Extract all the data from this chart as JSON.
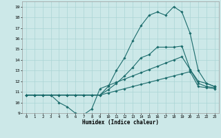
{
  "xlabel": "Humidex (Indice chaleur)",
  "bg_color": "#cce8e8",
  "grid_color": "#aad4d4",
  "line_color": "#1a6b6b",
  "xlim": [
    -0.5,
    23.5
  ],
  "ylim": [
    9,
    19.5
  ],
  "xticks": [
    0,
    1,
    2,
    3,
    4,
    5,
    6,
    7,
    8,
    9,
    10,
    11,
    12,
    13,
    14,
    15,
    16,
    17,
    18,
    19,
    20,
    21,
    22,
    23
  ],
  "yticks": [
    9,
    10,
    11,
    12,
    13,
    14,
    15,
    16,
    17,
    18,
    19
  ],
  "lines": [
    {
      "x": [
        0,
        1,
        2,
        3,
        4,
        5,
        6,
        7,
        8,
        9,
        10,
        11,
        12,
        13,
        14,
        15,
        16,
        17,
        18,
        19,
        20,
        21,
        22,
        23
      ],
      "y": [
        10.7,
        10.7,
        10.7,
        10.7,
        10.0,
        9.6,
        9.0,
        8.85,
        9.4,
        11.3,
        11.6,
        11.9,
        12.2,
        12.5,
        12.8,
        13.1,
        13.4,
        13.7,
        14.0,
        14.3,
        13.1,
        11.8,
        11.5,
        11.4
      ]
    },
    {
      "x": [
        0,
        1,
        2,
        3,
        4,
        5,
        6,
        7,
        8,
        9,
        10,
        11,
        12,
        13,
        14,
        15,
        16,
        17,
        18,
        19,
        20,
        21,
        22,
        23
      ],
      "y": [
        10.7,
        10.7,
        10.7,
        10.7,
        10.7,
        10.7,
        10.7,
        10.7,
        10.7,
        10.7,
        10.9,
        11.1,
        11.3,
        11.5,
        11.7,
        11.9,
        12.1,
        12.3,
        12.5,
        12.7,
        12.9,
        11.5,
        11.4,
        11.3
      ]
    },
    {
      "x": [
        0,
        1,
        2,
        3,
        4,
        5,
        6,
        7,
        8,
        9,
        10,
        11,
        12,
        13,
        14,
        15,
        16,
        17,
        18,
        19,
        20,
        21,
        22,
        23
      ],
      "y": [
        10.7,
        10.7,
        10.7,
        10.7,
        10.7,
        10.7,
        10.7,
        10.7,
        10.7,
        10.7,
        11.2,
        11.8,
        12.5,
        13.3,
        14.2,
        14.5,
        15.2,
        15.2,
        15.2,
        15.3,
        13.1,
        12.0,
        11.8,
        11.5
      ]
    },
    {
      "x": [
        0,
        1,
        2,
        3,
        4,
        5,
        6,
        7,
        8,
        9,
        10,
        11,
        12,
        13,
        14,
        15,
        16,
        17,
        18,
        19,
        20,
        21,
        22,
        23
      ],
      "y": [
        10.7,
        10.7,
        10.7,
        10.7,
        10.7,
        10.7,
        10.7,
        10.7,
        10.7,
        10.7,
        11.5,
        13.0,
        14.2,
        15.8,
        17.2,
        18.2,
        18.5,
        18.2,
        19.0,
        18.5,
        16.5,
        13.0,
        11.8,
        11.5
      ]
    }
  ]
}
